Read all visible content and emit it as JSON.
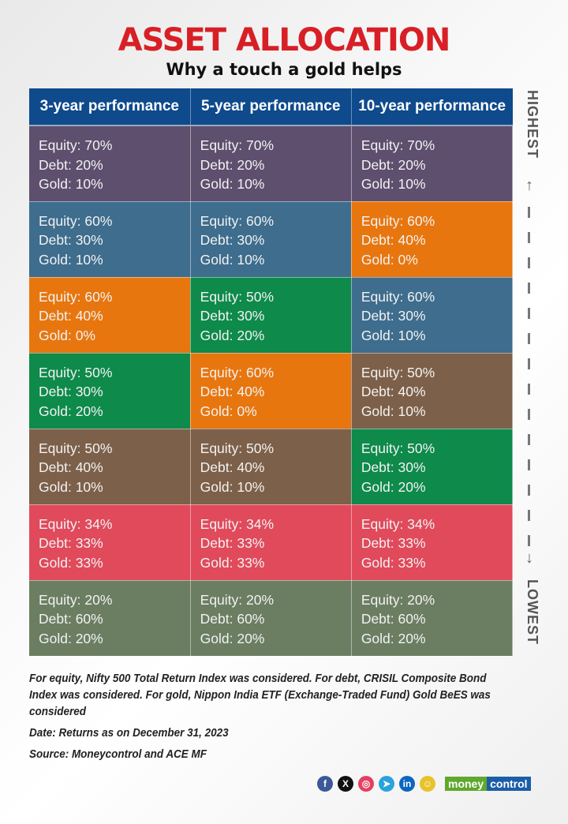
{
  "title": "ASSET ALLOCATION",
  "subtitle": "Why a touch a gold helps",
  "colors": {
    "header": "#0e4a8c",
    "purple": "#5e4f6e",
    "blue": "#3e6d8d",
    "orange": "#e8760f",
    "green": "#0e8a4b",
    "brown": "#7d6049",
    "red": "#e04a5b",
    "olive": "#6b7e62",
    "title": "#d81f26"
  },
  "table": {
    "headers": [
      "3-year performance",
      "5-year performance",
      "10-year performance"
    ],
    "rows": [
      [
        {
          "color": "purple",
          "lines": [
            "Equity: 70%",
            "Debt: 20%",
            "Gold: 10%"
          ]
        },
        {
          "color": "purple",
          "lines": [
            "Equity: 70%",
            "Debt: 20%",
            "Gold: 10%"
          ]
        },
        {
          "color": "purple",
          "lines": [
            "Equity: 70%",
            "Debt: 20%",
            "Gold: 10%"
          ]
        }
      ],
      [
        {
          "color": "blue",
          "lines": [
            "Equity: 60%",
            "Debt: 30%",
            "Gold: 10%"
          ]
        },
        {
          "color": "blue",
          "lines": [
            "Equity: 60%",
            "Debt: 30%",
            "Gold: 10%"
          ]
        },
        {
          "color": "orange",
          "lines": [
            "Equity: 60%",
            "Debt: 40%",
            "Gold: 0%"
          ]
        }
      ],
      [
        {
          "color": "orange",
          "lines": [
            "Equity: 60%",
            "Debt: 40%",
            "Gold: 0%"
          ]
        },
        {
          "color": "green",
          "lines": [
            "Equity: 50%",
            "Debt: 30%",
            "Gold: 20%"
          ]
        },
        {
          "color": "blue",
          "lines": [
            "Equity: 60%",
            "Debt: 30%",
            "Gold: 10%"
          ]
        }
      ],
      [
        {
          "color": "green",
          "lines": [
            "Equity: 50%",
            "Debt: 30%",
            "Gold: 20%"
          ]
        },
        {
          "color": "orange",
          "lines": [
            "Equity: 60%",
            "Debt: 40%",
            "Gold: 0%"
          ]
        },
        {
          "color": "brown",
          "lines": [
            "Equity: 50%",
            "Debt: 40%",
            "Gold: 10%"
          ]
        }
      ],
      [
        {
          "color": "brown",
          "lines": [
            "Equity: 50%",
            "Debt: 40%",
            "Gold: 10%"
          ]
        },
        {
          "color": "brown",
          "lines": [
            "Equity: 50%",
            "Debt: 40%",
            "Gold: 10%"
          ]
        },
        {
          "color": "green",
          "lines": [
            "Equity: 50%",
            "Debt: 30%",
            "Gold: 20%"
          ]
        }
      ],
      [
        {
          "color": "red",
          "lines": [
            "Equity: 34%",
            "Debt: 33%",
            "Gold: 33%"
          ]
        },
        {
          "color": "red",
          "lines": [
            "Equity: 34%",
            "Debt: 33%",
            "Gold: 33%"
          ]
        },
        {
          "color": "red",
          "lines": [
            "Equity: 34%",
            "Debt: 33%",
            "Gold: 33%"
          ]
        }
      ],
      [
        {
          "color": "olive",
          "lines": [
            "Equity: 20%",
            "Debt: 60%",
            "Gold: 20%"
          ]
        },
        {
          "color": "olive",
          "lines": [
            "Equity: 20%",
            "Debt: 60%",
            "Gold: 20%"
          ]
        },
        {
          "color": "olive",
          "lines": [
            "Equity: 20%",
            "Debt: 60%",
            "Gold: 20%"
          ]
        }
      ]
    ]
  },
  "scale": {
    "top": "HIGHEST",
    "bottom": "LOWEST"
  },
  "notes": {
    "methodology": "For equity, Nifty 500 Total Return Index was considered. For debt, CRISIL Composite Bond Index was considered. For gold, Nippon India ETF (Exchange-Traded Fund) Gold BeES was considered",
    "date": "Date: Returns as on December 31, 2023",
    "source": "Source: Moneycontrol and ACE MF"
  },
  "social": [
    {
      "name": "facebook",
      "glyph": "f",
      "color": "#3b5998"
    },
    {
      "name": "x",
      "glyph": "X",
      "color": "#111111"
    },
    {
      "name": "instagram",
      "glyph": "◎",
      "color": "#e4405f"
    },
    {
      "name": "telegram",
      "glyph": "➤",
      "color": "#2aa3dd"
    },
    {
      "name": "linkedin",
      "glyph": "in",
      "color": "#0a66c2"
    },
    {
      "name": "snapchat",
      "glyph": "☺",
      "color": "#e8c22a"
    }
  ],
  "brand": {
    "part1": "money",
    "part2": "control"
  }
}
